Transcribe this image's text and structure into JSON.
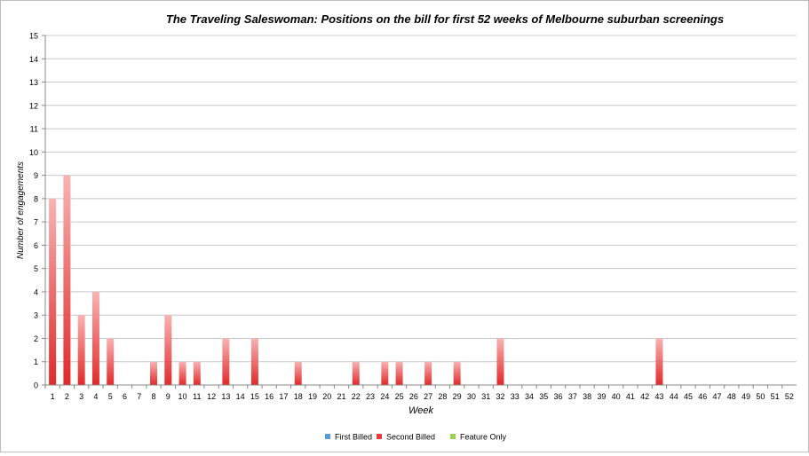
{
  "chart_data": {
    "type": "bar",
    "title": "The Traveling Saleswoman: Positions on the bill for first 52 weeks of Melbourne suburban screenings",
    "xlabel": "Week",
    "ylabel": "Number of engagements",
    "ylim": [
      0,
      15
    ],
    "yticks": [
      0,
      1,
      2,
      3,
      4,
      5,
      6,
      7,
      8,
      9,
      10,
      11,
      12,
      13,
      14,
      15
    ],
    "grid": true,
    "legend_position": "bottom",
    "categories": [
      "1",
      "2",
      "3",
      "4",
      "5",
      "6",
      "7",
      "8",
      "9",
      "10",
      "11",
      "12",
      "13",
      "14",
      "15",
      "16",
      "17",
      "18",
      "19",
      "20",
      "21",
      "22",
      "23",
      "24",
      "25",
      "26",
      "27",
      "28",
      "29",
      "30",
      "31",
      "32",
      "33",
      "34",
      "35",
      "36",
      "37",
      "38",
      "39",
      "40",
      "41",
      "42",
      "43",
      "44",
      "45",
      "46",
      "47",
      "48",
      "49",
      "50",
      "51",
      "52"
    ],
    "series": [
      {
        "name": "First Billed",
        "color": "#5b9bd5",
        "values": [
          0,
          0,
          0,
          0,
          0,
          0,
          0,
          0,
          0,
          0,
          0,
          0,
          0,
          0,
          0,
          0,
          0,
          0,
          0,
          0,
          0,
          0,
          0,
          0,
          0,
          0,
          0,
          0,
          0,
          0,
          0,
          0,
          0,
          0,
          0,
          0,
          0,
          0,
          0,
          0,
          0,
          0,
          0,
          0,
          0,
          0,
          0,
          0,
          0,
          0,
          0,
          0
        ]
      },
      {
        "name": "Second Billed",
        "color": "#e83a3a",
        "values": [
          8,
          9,
          3,
          4,
          2,
          0,
          0,
          1,
          3,
          1,
          1,
          0,
          2,
          0,
          2,
          0,
          0,
          1,
          0,
          0,
          0,
          1,
          0,
          1,
          1,
          0,
          1,
          0,
          1,
          0,
          0,
          2,
          0,
          0,
          0,
          0,
          0,
          0,
          0,
          0,
          0,
          0,
          2,
          0,
          0,
          0,
          0,
          0,
          0,
          0,
          0,
          0
        ]
      },
      {
        "name": "Feature Only",
        "color": "#9bd04c",
        "values": [
          0,
          0,
          0,
          0,
          0,
          0,
          0,
          0,
          0,
          0,
          0,
          0,
          0,
          0,
          0,
          0,
          0,
          0,
          0,
          0,
          0,
          0,
          0,
          0,
          0,
          0,
          0,
          0,
          0,
          0,
          0,
          0,
          0,
          0,
          0,
          0,
          0,
          0,
          0,
          0,
          0,
          0,
          0,
          0,
          0,
          0,
          0,
          0,
          0,
          0,
          0,
          0
        ]
      }
    ]
  }
}
